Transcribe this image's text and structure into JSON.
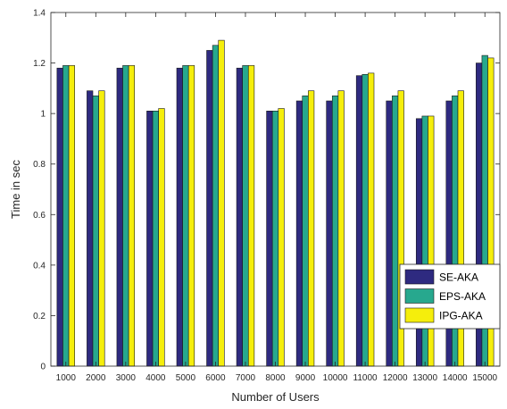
{
  "chart_data": {
    "type": "bar",
    "title": "",
    "xlabel": "Number of Users",
    "ylabel": "Time in sec",
    "ylim": [
      0,
      1.4
    ],
    "yticks": [
      "0",
      "0.2",
      "0.4",
      "0.6",
      "0.8",
      "1",
      "1.2",
      "1.4"
    ],
    "grid": false,
    "legend_position": "bottom-right",
    "categories": [
      "1000",
      "2000",
      "3000",
      "4000",
      "5000",
      "6000",
      "7000",
      "8000",
      "9000",
      "10000",
      "11000",
      "12000",
      "13000",
      "14000",
      "15000"
    ],
    "series": [
      {
        "name": "SE-AKA",
        "color": "#2e2a80",
        "values": [
          1.18,
          1.09,
          1.18,
          1.01,
          1.18,
          1.25,
          1.18,
          1.01,
          1.05,
          1.05,
          1.15,
          1.05,
          0.98,
          1.05,
          1.2
        ]
      },
      {
        "name": "EPS-AKA",
        "color": "#27a88e",
        "values": [
          1.19,
          1.07,
          1.19,
          1.01,
          1.19,
          1.27,
          1.19,
          1.01,
          1.07,
          1.07,
          1.155,
          1.07,
          0.99,
          1.07,
          1.23
        ]
      },
      {
        "name": "IPG-AKA",
        "color": "#f5ee0c",
        "values": [
          1.19,
          1.09,
          1.19,
          1.02,
          1.19,
          1.29,
          1.19,
          1.02,
          1.09,
          1.09,
          1.16,
          1.09,
          0.99,
          1.09,
          1.22
        ]
      }
    ]
  }
}
